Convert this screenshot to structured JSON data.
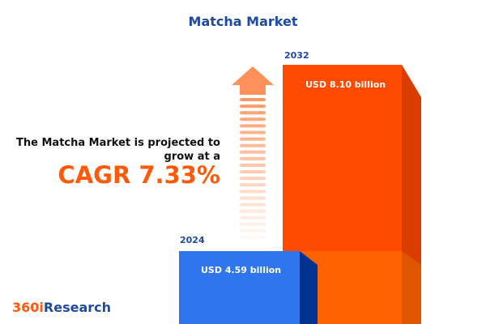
{
  "title": "Matcha Market",
  "description": "The Matcha Market is projected to grow at a",
  "cagr_label": "CAGR 7.33%",
  "logo": {
    "prefix": "360i",
    "suffix": "Research"
  },
  "colors": {
    "title": "#1e4aa0",
    "accent": "#ff5a0a",
    "bar_2024": "#2f76ee",
    "bar_2032": "#ff4a00"
  },
  "icons": {
    "growth": "up-arrow-icon"
  },
  "chart_data": {
    "type": "bar",
    "title": "Matcha Market",
    "categories": [
      "2024",
      "2032"
    ],
    "values": [
      4.59,
      8.1
    ],
    "unit": "USD billion",
    "data_labels": [
      "USD 4.59 billion",
      "USD 8.10 billion"
    ],
    "cagr_percent": 7.33
  }
}
